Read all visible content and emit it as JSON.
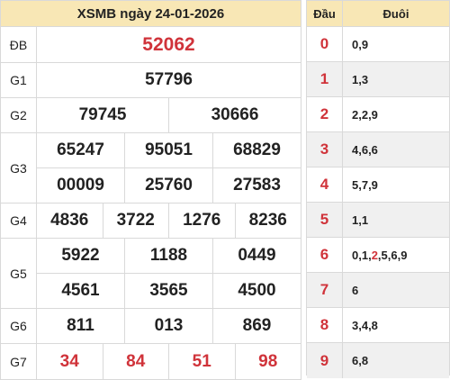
{
  "title": "XSMB ngày 24-01-2026",
  "prizes": {
    "db": {
      "label": "ĐB",
      "numbers": [
        "52062"
      ]
    },
    "g1": {
      "label": "G1",
      "numbers": [
        "57796"
      ]
    },
    "g2": {
      "label": "G2",
      "numbers": [
        "79745",
        "30666"
      ]
    },
    "g3": {
      "label": "G3",
      "numbers": [
        "65247",
        "95051",
        "68829",
        "00009",
        "25760",
        "27583"
      ]
    },
    "g4": {
      "label": "G4",
      "numbers": [
        "4836",
        "3722",
        "1276",
        "8236"
      ]
    },
    "g5": {
      "label": "G5",
      "numbers": [
        "5922",
        "1188",
        "0449",
        "4561",
        "3565",
        "4500"
      ]
    },
    "g6": {
      "label": "G6",
      "numbers": [
        "811",
        "013",
        "869"
      ]
    },
    "g7": {
      "label": "G7",
      "numbers": [
        "34",
        "84",
        "51",
        "98"
      ]
    }
  },
  "loto": {
    "head_label": "Đầu",
    "tail_label": "Đuôi",
    "rows": [
      {
        "head": "0",
        "tails": "0,9"
      },
      {
        "head": "1",
        "tails": "1,3"
      },
      {
        "head": "2",
        "tails": "2,2,9"
      },
      {
        "head": "3",
        "tails": "4,6,6"
      },
      {
        "head": "4",
        "tails": "5,7,9"
      },
      {
        "head": "5",
        "tails": "1,1"
      },
      {
        "head": "6",
        "tails_before": "0,1,",
        "tails_highlight": "2",
        "tails_after": ",5,6,9"
      },
      {
        "head": "7",
        "tails": "6"
      },
      {
        "head": "8",
        "tails": "3,4,8"
      },
      {
        "head": "9",
        "tails": "6,8"
      }
    ]
  },
  "colors": {
    "accent_red": "#d0333a",
    "header_bg": "#f8e7b5",
    "alt_row_bg": "#f0f0f0"
  }
}
